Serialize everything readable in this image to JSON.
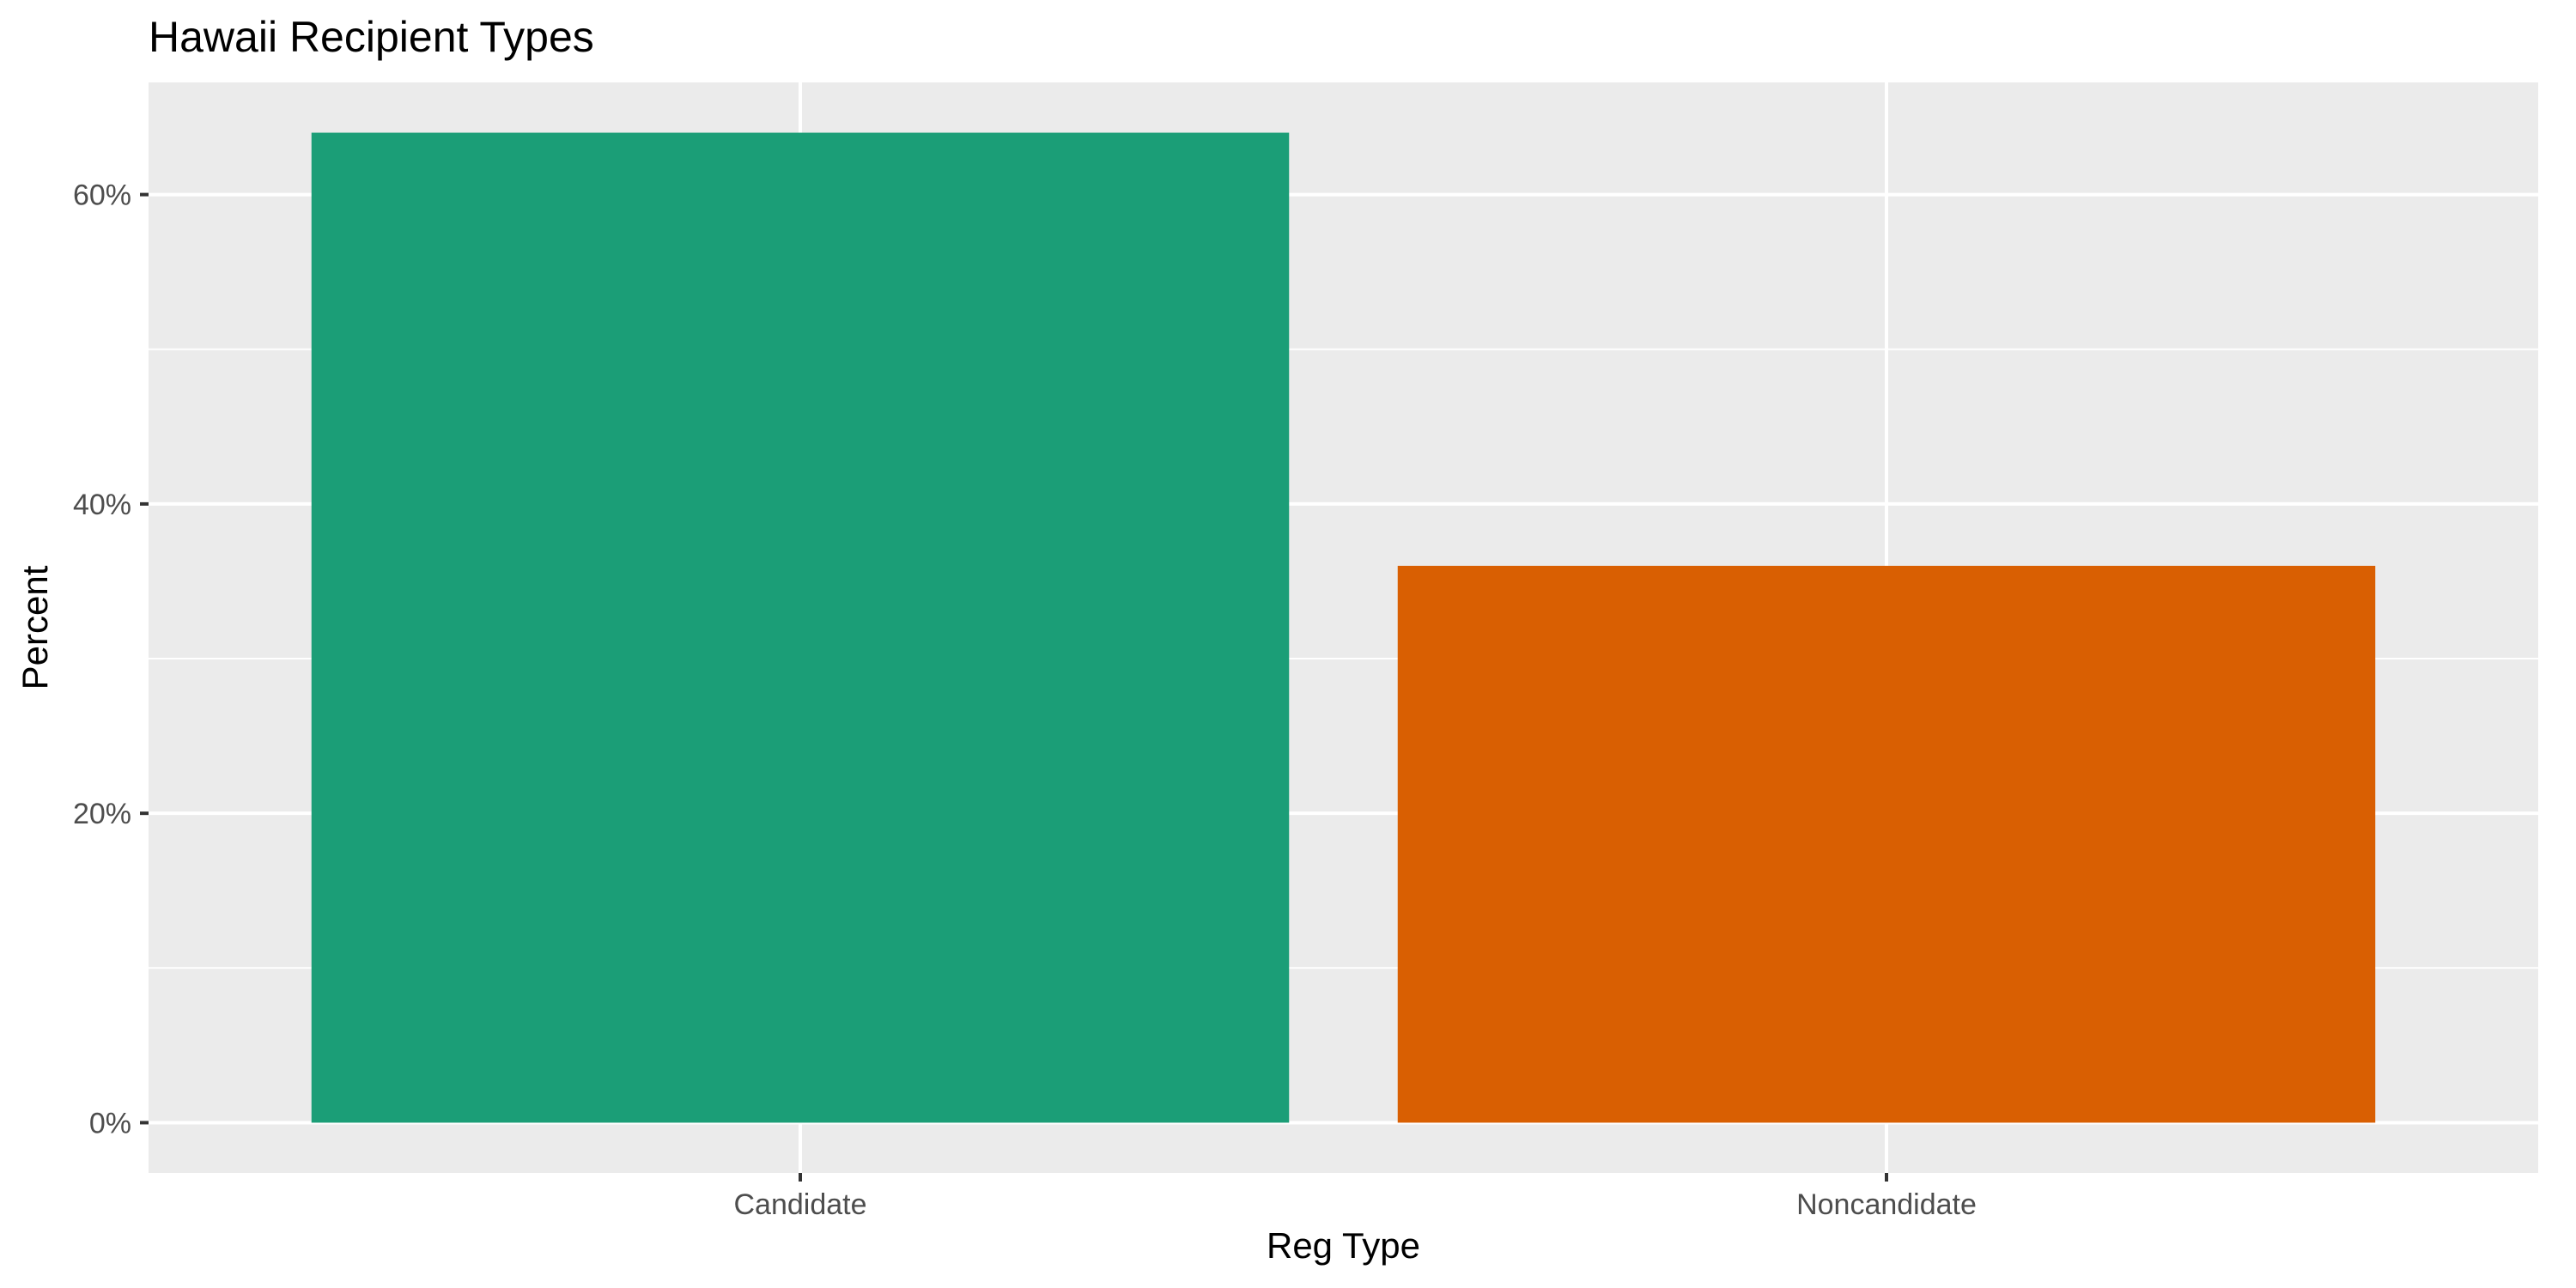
{
  "chart_data": {
    "type": "bar",
    "title": "Hawaii Recipient Types",
    "xlabel": "Reg Type",
    "ylabel": "Percent",
    "categories": [
      "Candidate",
      "Noncandidate"
    ],
    "values": [
      0.64,
      0.36
    ],
    "colors": [
      "#1b9e77",
      "#d95f02"
    ],
    "ylim": [
      -0.0325,
      0.6725
    ],
    "yticks": [
      0,
      0.2,
      0.4,
      0.6
    ],
    "ytick_labels": [
      "0%",
      "20%",
      "40%",
      "60%"
    ],
    "legend": "none",
    "grid": true,
    "panel_background": "#ebebeb",
    "grid_color": "#ffffff"
  }
}
